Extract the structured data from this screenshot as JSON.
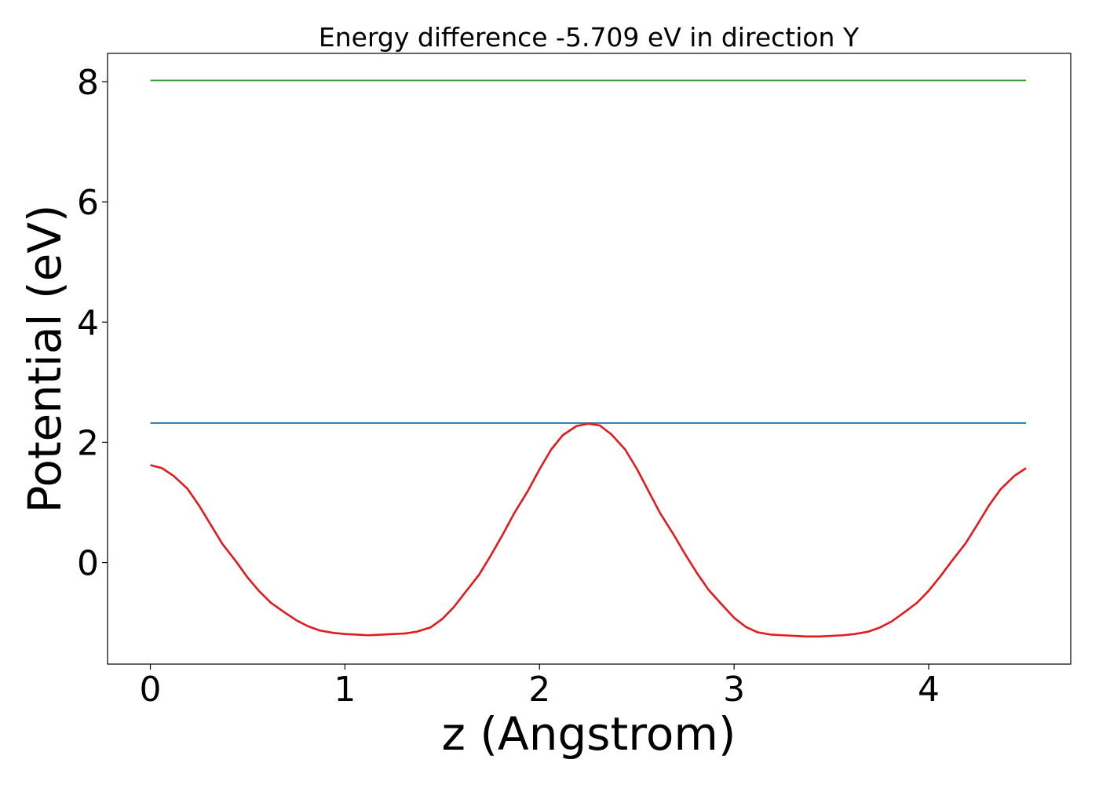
{
  "chart_data": {
    "type": "line",
    "title": "Energy difference -5.709 eV in direction Y",
    "xlabel": "z (Angstrom)",
    "ylabel": "Potential (eV)",
    "xlim": [
      -0.22,
      4.73
    ],
    "ylim": [
      -1.69,
      8.47
    ],
    "xticks": [
      0,
      1,
      2,
      3,
      4
    ],
    "yticks": [
      0,
      2,
      4,
      6,
      8
    ],
    "grid": false,
    "series": [
      {
        "color": "#2ca02c",
        "x": [
          0,
          4.5
        ],
        "y": [
          8.02,
          8.02
        ]
      },
      {
        "color": "#1f77b4",
        "x": [
          0,
          4.5
        ],
        "y": [
          2.32,
          2.32
        ]
      },
      {
        "color": "#e31a1c",
        "x": [
          0,
          0.06,
          0.12,
          0.19,
          0.25,
          0.31,
          0.37,
          0.44,
          0.5,
          0.56,
          0.62,
          0.69,
          0.75,
          0.81,
          0.87,
          0.94,
          1.0,
          1.06,
          1.12,
          1.19,
          1.25,
          1.31,
          1.37,
          1.44,
          1.5,
          1.56,
          1.62,
          1.69,
          1.75,
          1.81,
          1.87,
          1.94,
          2.0,
          2.06,
          2.12,
          2.19,
          2.25,
          2.31,
          2.37,
          2.44,
          2.5,
          2.56,
          2.62,
          2.69,
          2.75,
          2.81,
          2.87,
          2.94,
          3.0,
          3.06,
          3.12,
          3.19,
          3.25,
          3.31,
          3.37,
          3.44,
          3.5,
          3.56,
          3.62,
          3.69,
          3.75,
          3.81,
          3.87,
          3.94,
          4.0,
          4.06,
          4.12,
          4.19,
          4.25,
          4.31,
          4.37,
          4.44,
          4.5
        ],
        "y": [
          1.62,
          1.57,
          1.44,
          1.23,
          0.95,
          0.63,
          0.31,
          0.02,
          -0.25,
          -0.48,
          -0.67,
          -0.83,
          -0.96,
          -1.06,
          -1.13,
          -1.17,
          -1.19,
          -1.2,
          -1.21,
          -1.2,
          -1.19,
          -1.18,
          -1.15,
          -1.08,
          -0.94,
          -0.74,
          -0.49,
          -0.2,
          0.12,
          0.46,
          0.82,
          1.19,
          1.55,
          1.88,
          2.12,
          2.27,
          2.31,
          2.28,
          2.13,
          1.88,
          1.56,
          1.19,
          0.82,
          0.46,
          0.13,
          -0.18,
          -0.46,
          -0.71,
          -0.92,
          -1.07,
          -1.16,
          -1.2,
          -1.21,
          -1.22,
          -1.23,
          -1.23,
          -1.22,
          -1.21,
          -1.19,
          -1.15,
          -1.08,
          -0.98,
          -0.84,
          -0.67,
          -0.47,
          -0.23,
          0.03,
          0.32,
          0.63,
          0.95,
          1.22,
          1.44,
          1.57
        ]
      }
    ]
  }
}
